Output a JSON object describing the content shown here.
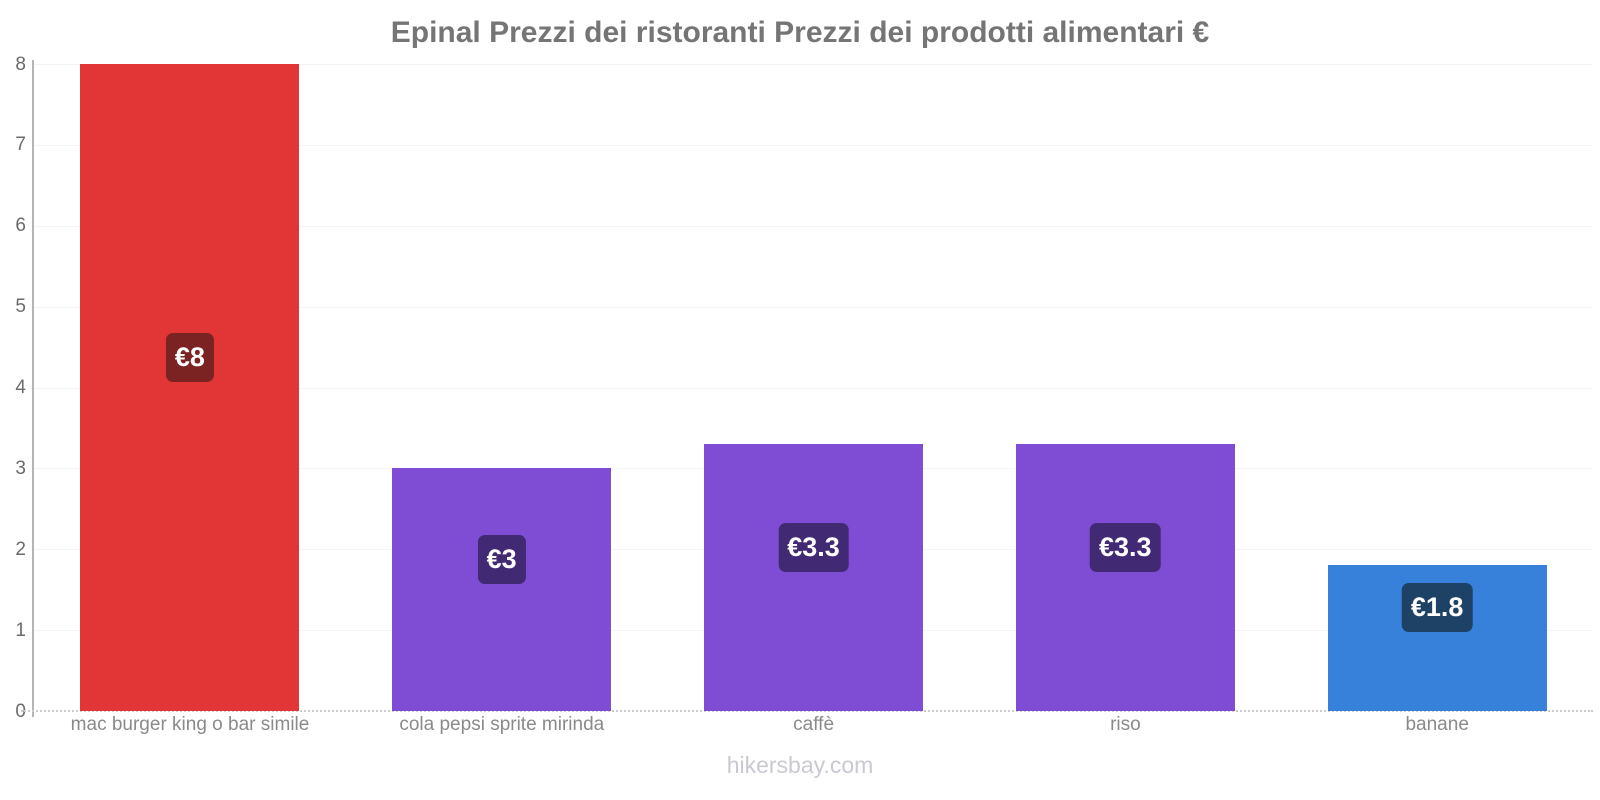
{
  "chart": {
    "title": "Epinal Prezzi dei ristoranti Prezzi dei prodotti alimentari €"
  },
  "chart_data": {
    "type": "bar",
    "title": "Epinal Prezzi dei ristoranti Prezzi dei prodotti alimentari €",
    "categories": [
      "mac burger king o bar simile",
      "cola pepsi sprite mirinda",
      "caffè",
      "riso",
      "banane"
    ],
    "values": [
      8,
      3,
      3.3,
      3.3,
      1.8
    ],
    "value_labels": [
      "€8",
      "€3",
      "€3.3",
      "€3.3",
      "€1.8"
    ],
    "bar_colors": [
      "#e23636",
      "#7f4cd4",
      "#7f4cd4",
      "#7f4cd4",
      "#3781da"
    ],
    "badge_colors": [
      "#7b2222",
      "#412a73",
      "#412a73",
      "#412a73",
      "#1e4166"
    ],
    "currency": "€",
    "xlabel": "",
    "ylabel": "",
    "ylim": [
      0,
      8
    ],
    "yticks": [
      0,
      1,
      2,
      3,
      4,
      5,
      6,
      7,
      8
    ],
    "grid": true,
    "legend": false
  },
  "footer": {
    "watermark": "hikersbay.com"
  }
}
